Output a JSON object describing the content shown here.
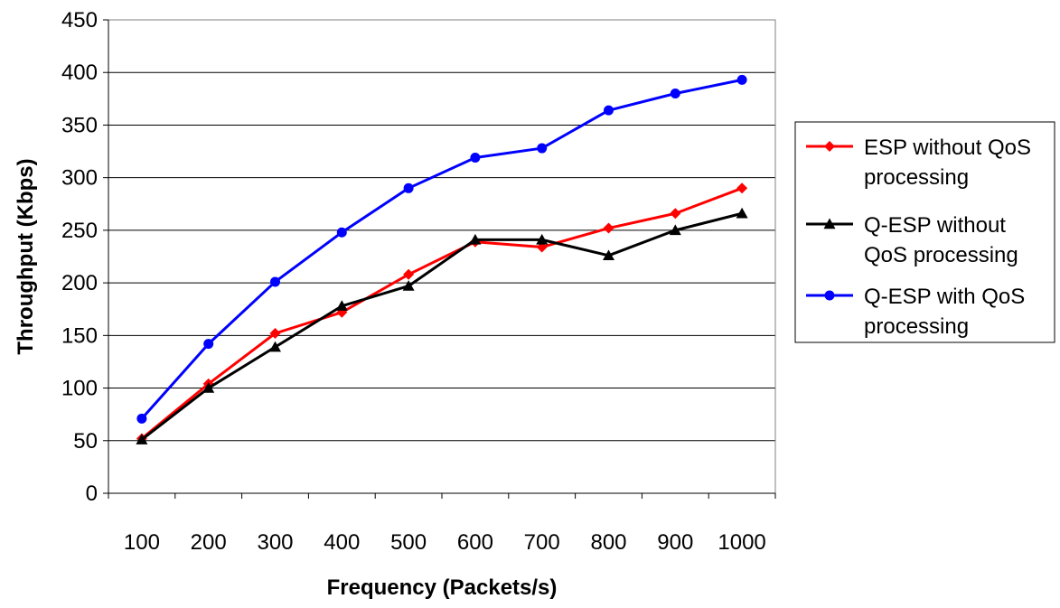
{
  "chart_data": {
    "type": "line",
    "title": "",
    "xlabel": "Frequency (Packets/s)",
    "ylabel": "Throughput (Kbps)",
    "ylim": [
      0,
      450
    ],
    "ytick_step": 50,
    "categories": [
      "100",
      "200",
      "300",
      "400",
      "500",
      "600",
      "700",
      "800",
      "900",
      "1000"
    ],
    "grid": "horizontal",
    "legend_position": "right",
    "series": [
      {
        "name_lines": [
          "ESP without QoS",
          "processing"
        ],
        "color": "#ff0000",
        "marker": "diamond",
        "values": [
          52,
          104,
          152,
          172,
          208,
          239,
          234,
          252,
          266,
          290
        ]
      },
      {
        "name_lines": [
          "Q-ESP without",
          "QoS processing"
        ],
        "color": "#000000",
        "marker": "triangle",
        "values": [
          51,
          100,
          139,
          178,
          197,
          241,
          241,
          226,
          250,
          266
        ]
      },
      {
        "name_lines": [
          "Q-ESP with QoS",
          "processing"
        ],
        "color": "#0000ff",
        "marker": "circle",
        "values": [
          71,
          142,
          201,
          248,
          290,
          319,
          328,
          364,
          380,
          393
        ]
      }
    ]
  }
}
